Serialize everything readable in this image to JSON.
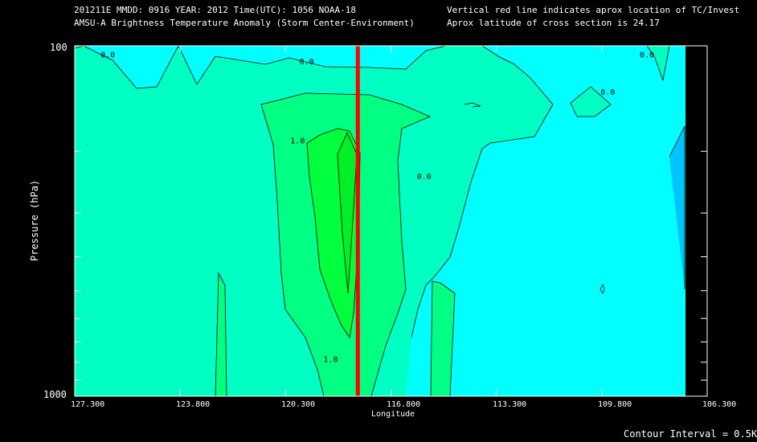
{
  "header": {
    "line1_left": "201211E  MMDD: 0916 YEAR: 2012 Time(UTC): 1056 NOAA-18",
    "line2_left": "AMSU-A Brightness Temperature Anomaly (Storm Center-Environment)",
    "line1_right": "Vertical red line indicates aprox location of TC/Invest",
    "line2_right": "Aprox latitude of cross section is 24.17"
  },
  "footer": {
    "contour_interval": "Contour Interval = 0.5K"
  },
  "chart_data": {
    "type": "contour",
    "title": "AMSU-A Brightness Temperature Anomaly (Storm Center-Environment)",
    "xlabel": "Longitude",
    "ylabel": "Pressure (hPa)",
    "x_tick_labels": [
      "127.300",
      "123.800",
      "120.300",
      "116.800",
      "113.300",
      "109.800",
      "106.300"
    ],
    "x_ticks": [
      127.3,
      123.8,
      120.3,
      116.8,
      113.3,
      109.8,
      106.3
    ],
    "xlim": [
      127.3,
      106.3
    ],
    "y_tick_labels": [
      "100",
      "1000"
    ],
    "ylim": [
      100,
      1000
    ],
    "y_scale": "log",
    "y_minor_ticks": [
      200,
      300,
      400,
      500,
      600,
      700,
      800,
      900
    ],
    "storm_longitude": 117.9,
    "storm_latitude": 24.17,
    "contour_interval_k": 0.5,
    "contour_labels": [
      {
        "text": "0.0",
        "lon": 126.2,
        "p": 108
      },
      {
        "text": "0.0",
        "lon": 119.6,
        "p": 113
      },
      {
        "text": "1.0",
        "lon": 119.9,
        "p": 190
      },
      {
        "text": "0.0",
        "lon": 115.7,
        "p": 240
      },
      {
        "text": "0.0",
        "lon": 109.6,
        "p": 138
      },
      {
        "text": "0.0",
        "lon": 108.3,
        "p": 108
      },
      {
        "text": "1.0",
        "lon": 118.8,
        "p": 800
      }
    ],
    "colors": {
      "minus_1_0": "#00c3ff",
      "minus_0_5": "#00ffff",
      "zero": "#00ffc3",
      "plus_0_5": "#00ff82",
      "plus_1_0": "#00ff3c",
      "no_data": "#000000",
      "storm_line": "#ff0000"
    }
  }
}
